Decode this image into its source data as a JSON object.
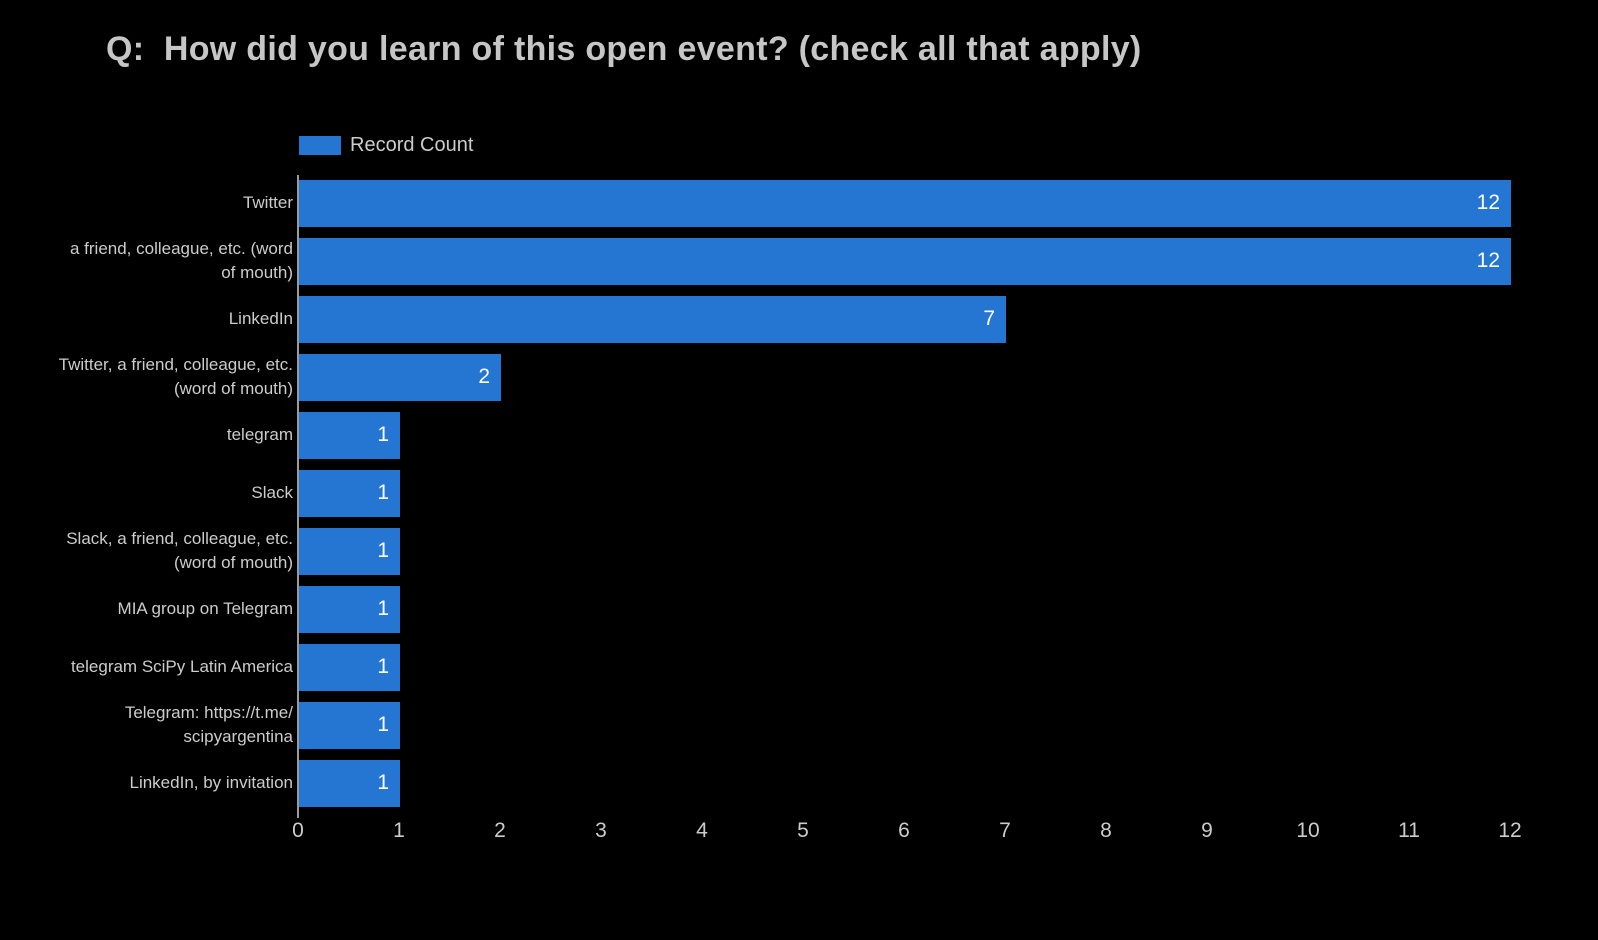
{
  "page": {
    "background": "#000000",
    "text_color": "#cccccc"
  },
  "title": "Q:  How did you learn of this open event? (check all that apply)",
  "legend": {
    "label": "Record Count",
    "swatch_color": "#2576d2"
  },
  "chart_data": {
    "type": "bar",
    "orientation": "horizontal",
    "title": "Q:  How did you learn of this open event? (check all that apply)",
    "categories": [
      "Twitter",
      "a friend, colleague, etc. (word\nof mouth)",
      "LinkedIn",
      "Twitter, a friend, colleague, etc.\n(word of mouth)",
      "telegram",
      "Slack",
      "Slack, a friend, colleague, etc.\n(word of mouth)",
      "MIA group on Telegram",
      "telegram SciPy Latin America",
      "Telegram: https://t.me/\nscipyargentina",
      "LinkedIn, by invitation"
    ],
    "series": [
      {
        "name": "Record Count",
        "values": [
          12,
          12,
          7,
          2,
          1,
          1,
          1,
          1,
          1,
          1,
          1
        ]
      }
    ],
    "xlabel": "",
    "ylabel": "",
    "xlim": [
      0,
      12
    ],
    "xticks": [
      0,
      1,
      2,
      3,
      4,
      5,
      6,
      7,
      8,
      9,
      10,
      11,
      12
    ],
    "grid": false,
    "legend_position": "top-left",
    "bar_color": "#2576d2",
    "value_labels_position": "inside-end",
    "value_label_color": "#ffffff",
    "background": "#000000",
    "axis_line_color": "#9a9a9a",
    "tick_label_color": "#cccccc"
  }
}
